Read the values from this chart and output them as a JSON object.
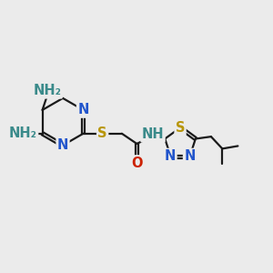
{
  "bg_color": "#ebebeb",
  "bond_color": "#1a1a1a",
  "atom_colors": {
    "N": "#2255cc",
    "S": "#b8960a",
    "O": "#cc2200",
    "NH": "#3a8a8a",
    "C": "#1a1a1a"
  },
  "dbo": 0.055,
  "lw": 1.6,
  "fs": 10.5
}
